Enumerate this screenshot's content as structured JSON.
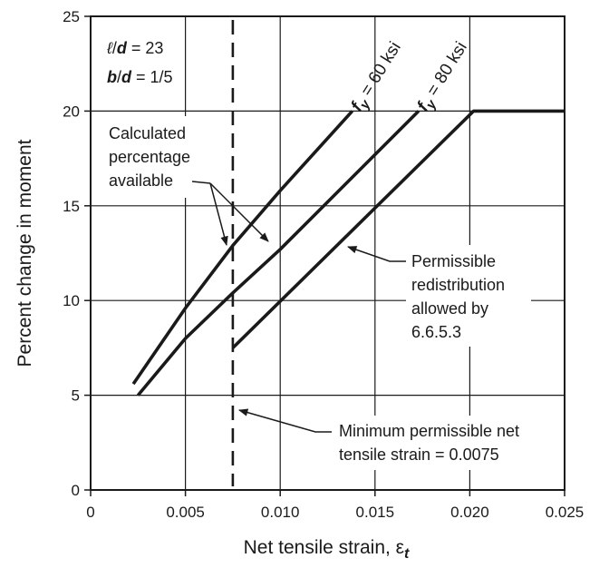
{
  "chart_data": {
    "type": "line",
    "xlabel": "Net tensile strain, ε",
    "xlabel_sub": "t",
    "ylabel": "Percent change in moment",
    "xlim": [
      0,
      0.025
    ],
    "ylim": [
      0,
      25
    ],
    "x_ticks": [
      0,
      0.005,
      0.01,
      0.015,
      0.02,
      0.025
    ],
    "x_tick_labels": [
      "0",
      "0.005",
      "0.010",
      "0.015",
      "0.020",
      "0.025"
    ],
    "y_ticks": [
      0,
      5,
      10,
      15,
      20,
      25
    ],
    "y_tick_labels": [
      "0",
      "5",
      "10",
      "15",
      "20",
      "25"
    ],
    "grid": true,
    "params": [
      {
        "sym": "ℓ",
        "sep": "/",
        "den": "d",
        "eq": " = 23"
      },
      {
        "sym": "b",
        "sep": "/",
        "den": "d",
        "eq": " = 1/5"
      }
    ],
    "series": [
      {
        "name_main": "f",
        "name_sub": "y",
        "name_rest": " = 60 ksi",
        "style": "solid",
        "points": [
          [
            0.00225,
            5.6
          ],
          [
            0.005,
            9.6
          ],
          [
            0.0075,
            12.9
          ],
          [
            0.01,
            15.8
          ],
          [
            0.0138,
            20.0
          ]
        ]
      },
      {
        "name_main": "f",
        "name_sub": "y",
        "name_rest": " = 80 ksi",
        "style": "solid",
        "points": [
          [
            0.0025,
            5.0
          ],
          [
            0.005,
            8.0
          ],
          [
            0.0075,
            10.4
          ],
          [
            0.01,
            12.7
          ],
          [
            0.0173,
            20.0
          ]
        ]
      },
      {
        "name": "",
        "style": "solid",
        "points": [
          [
            0.0075,
            7.5
          ],
          [
            0.0202,
            20.0
          ],
          [
            0.025,
            20.0
          ]
        ]
      }
    ],
    "reference_line": {
      "x": 0.0075,
      "style": "dashed"
    },
    "annotations": [
      {
        "lines": [
          "Calculated",
          "percentage",
          "available"
        ]
      },
      {
        "lines": [
          "Permissible",
          "redistribution",
          "allowed by",
          "6.6.5.3"
        ]
      },
      {
        "lines": [
          "Minimum permissible net",
          "tensile strain = 0.0075"
        ]
      }
    ]
  }
}
